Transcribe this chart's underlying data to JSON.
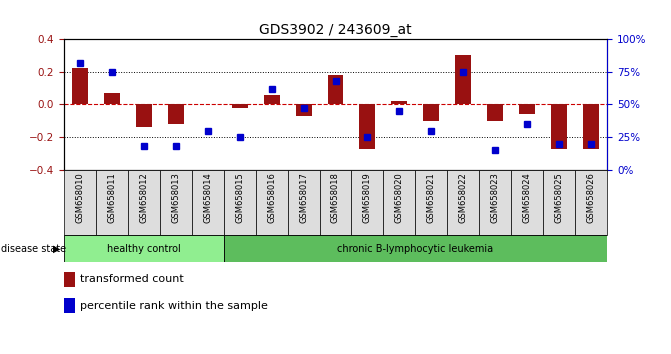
{
  "title": "GDS3902 / 243609_at",
  "samples": [
    "GSM658010",
    "GSM658011",
    "GSM658012",
    "GSM658013",
    "GSM658014",
    "GSM658015",
    "GSM658016",
    "GSM658017",
    "GSM658018",
    "GSM658019",
    "GSM658020",
    "GSM658021",
    "GSM658022",
    "GSM658023",
    "GSM658024",
    "GSM658025",
    "GSM658026"
  ],
  "red_values": [
    0.22,
    0.07,
    -0.14,
    -0.12,
    0.0,
    -0.02,
    0.06,
    -0.07,
    0.18,
    -0.27,
    0.02,
    -0.1,
    0.3,
    -0.1,
    -0.06,
    -0.27,
    -0.27
  ],
  "blue_pct": [
    82,
    75,
    18,
    18,
    30,
    25,
    62,
    47,
    68,
    25,
    45,
    30,
    75,
    15,
    35,
    20,
    20
  ],
  "healthy_count": 5,
  "ylim": [
    -0.4,
    0.4
  ],
  "right_ylim": [
    0,
    100
  ],
  "healthy_color": "#90EE90",
  "leukemia_color": "#5DBD5D",
  "bar_color": "#991111",
  "blue_color": "#0000CC",
  "zero_line_color": "#CC0000",
  "bg_color": "#FFFFFF",
  "label_box_color": "#DDDDDD"
}
